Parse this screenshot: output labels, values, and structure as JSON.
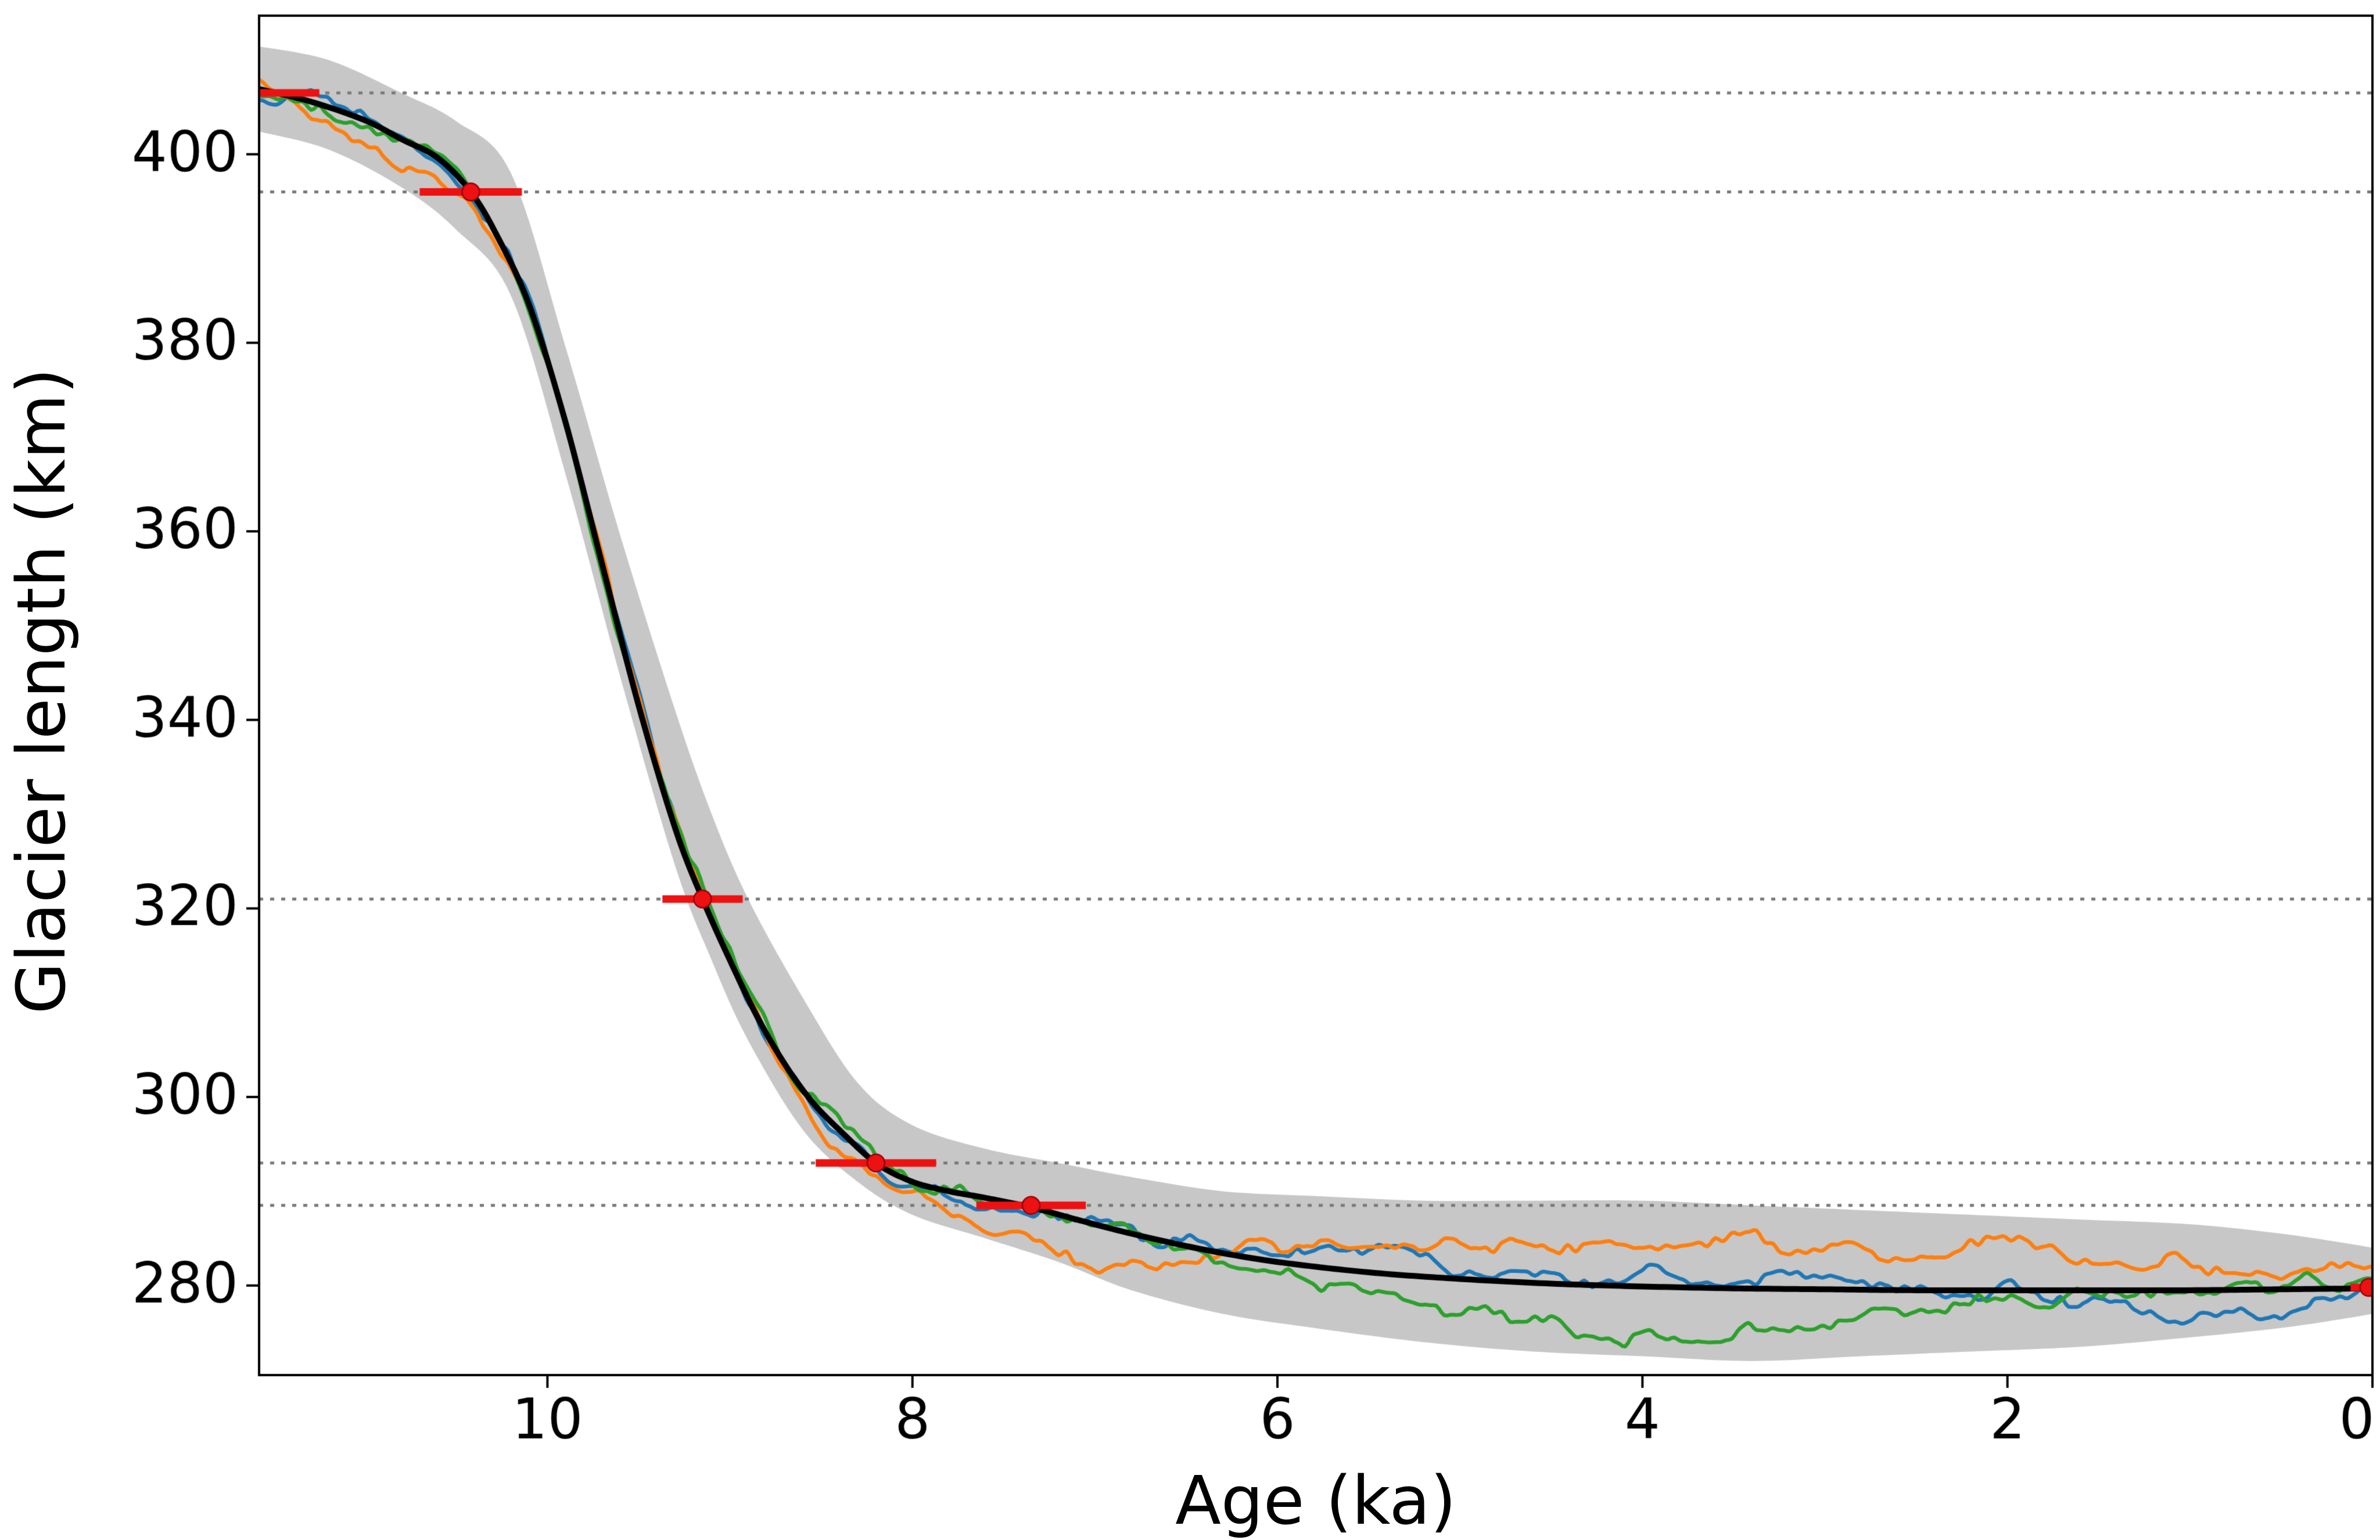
{
  "figure": {
    "background": "#ffffff"
  },
  "chart_data": {
    "type": "line",
    "title": "",
    "xlabel": "Age (ka)",
    "ylabel": "Glacier length (km)",
    "x_axis_reversed": true,
    "xlim": [
      11.58,
      0
    ],
    "ylim": [
      270.5,
      414.7
    ],
    "x_ticks": [
      10,
      8,
      6,
      4,
      2,
      0
    ],
    "y_ticks": [
      280,
      300,
      320,
      340,
      360,
      380,
      400
    ],
    "grid": false,
    "legend": "none",
    "dotted_reference_lines": {
      "color": "#7a7a7a",
      "y_values": [
        406.5,
        396.0,
        321.0,
        293.0,
        288.5
      ]
    },
    "envelope": {
      "name": "uncertainty-band",
      "color": "#c7c7c7",
      "points": [
        [
          11.6,
          402.5,
          411.5
        ],
        [
          11.2,
          400.5,
          410.0
        ],
        [
          10.8,
          396.5,
          406.5
        ],
        [
          10.5,
          392.0,
          403.5
        ],
        [
          10.2,
          385.0,
          398.0
        ],
        [
          9.9,
          366.0,
          379.5
        ],
        [
          9.6,
          344.5,
          359.5
        ],
        [
          9.3,
          324.5,
          341.0
        ],
        [
          9.1,
          314.5,
          330.0
        ],
        [
          8.9,
          306.0,
          321.0
        ],
        [
          8.6,
          296.5,
          310.5
        ],
        [
          8.3,
          291.0,
          301.5
        ],
        [
          8.0,
          287.5,
          297.0
        ],
        [
          7.6,
          285.0,
          294.5
        ],
        [
          7.2,
          282.5,
          293.0
        ],
        [
          6.8,
          279.5,
          291.5
        ],
        [
          6.3,
          277.0,
          290.0
        ],
        [
          5.8,
          275.5,
          289.5
        ],
        [
          5.2,
          274.0,
          289.0
        ],
        [
          4.6,
          273.0,
          289.0
        ],
        [
          4.0,
          272.5,
          289.0
        ],
        [
          3.4,
          272.0,
          288.5
        ],
        [
          2.8,
          272.5,
          288.0
        ],
        [
          2.2,
          273.0,
          287.5
        ],
        [
          1.6,
          273.5,
          287.0
        ],
        [
          1.0,
          274.5,
          286.5
        ],
        [
          0.5,
          275.5,
          285.5
        ],
        [
          0.15,
          276.5,
          284.5
        ],
        [
          0.0,
          277.0,
          284.0
        ]
      ]
    },
    "mean_curve": {
      "name": "ensemble-mean",
      "color": "#000000",
      "points": [
        [
          11.6,
          407.0
        ],
        [
          11.3,
          405.6
        ],
        [
          11.0,
          403.6
        ],
        [
          10.8,
          401.6
        ],
        [
          10.6,
          399.6
        ],
        [
          10.42,
          396.0
        ],
        [
          10.28,
          391.5
        ],
        [
          10.1,
          384.0
        ],
        [
          9.9,
          371.5
        ],
        [
          9.7,
          356.5
        ],
        [
          9.5,
          341.5
        ],
        [
          9.3,
          328.5
        ],
        [
          9.15,
          321.0
        ],
        [
          9.0,
          314.5
        ],
        [
          8.85,
          308.5
        ],
        [
          8.7,
          303.5
        ],
        [
          8.55,
          299.5
        ],
        [
          8.4,
          296.5
        ],
        [
          8.2,
          293.0
        ],
        [
          8.0,
          291.0
        ],
        [
          7.8,
          290.0
        ],
        [
          7.6,
          289.3
        ],
        [
          7.35,
          288.3
        ],
        [
          7.1,
          287.0
        ],
        [
          6.8,
          285.5
        ],
        [
          6.4,
          283.8
        ],
        [
          6.0,
          282.5
        ],
        [
          5.5,
          281.4
        ],
        [
          5.0,
          280.7
        ],
        [
          4.5,
          280.2
        ],
        [
          4.0,
          279.9
        ],
        [
          3.5,
          279.7
        ],
        [
          3.0,
          279.6
        ],
        [
          2.5,
          279.5
        ],
        [
          2.0,
          279.5
        ],
        [
          1.5,
          279.5
        ],
        [
          1.0,
          279.5
        ],
        [
          0.5,
          279.6
        ],
        [
          0.0,
          279.7
        ]
      ]
    },
    "ensemble_members": [
      {
        "name": "member-1",
        "color": "#1f77b4",
        "seed": 7,
        "bias_points": [
          [
            11.6,
            -0.5
          ],
          [
            11.0,
            0.5
          ],
          [
            10.5,
            -0.5
          ],
          [
            10.0,
            0.5
          ],
          [
            9.5,
            1.0
          ],
          [
            9.0,
            0.5
          ],
          [
            8.5,
            -0.5
          ],
          [
            8.0,
            -1.0
          ],
          [
            7.5,
            0.0
          ],
          [
            7.0,
            0.5
          ],
          [
            6.5,
            0.0
          ],
          [
            6.0,
            0.5
          ],
          [
            5.5,
            2.0
          ],
          [
            5.0,
            1.5
          ],
          [
            4.5,
            1.0
          ],
          [
            4.0,
            1.5
          ],
          [
            3.5,
            0.5
          ],
          [
            3.0,
            1.0
          ],
          [
            2.5,
            0.5
          ],
          [
            2.0,
            0.0
          ],
          [
            1.5,
            -1.0
          ],
          [
            1.0,
            -2.5
          ],
          [
            0.6,
            -3.5
          ],
          [
            0.3,
            -2.0
          ],
          [
            0.0,
            -0.5
          ]
        ]
      },
      {
        "name": "member-2",
        "color": "#ff7f0e",
        "seed": 13,
        "bias_points": [
          [
            11.6,
            1.0
          ],
          [
            11.2,
            -1.0
          ],
          [
            10.8,
            -2.0
          ],
          [
            10.5,
            -1.5
          ],
          [
            10.2,
            -1.0
          ],
          [
            9.8,
            0.0
          ],
          [
            9.4,
            1.5
          ],
          [
            9.0,
            1.0
          ],
          [
            8.7,
            -1.0
          ],
          [
            8.4,
            -2.0
          ],
          [
            8.0,
            -1.0
          ],
          [
            7.7,
            -2.5
          ],
          [
            7.3,
            -3.5
          ],
          [
            7.0,
            -4.0
          ],
          [
            6.7,
            -2.0
          ],
          [
            6.4,
            0.0
          ],
          [
            6.0,
            1.5
          ],
          [
            5.5,
            3.0
          ],
          [
            5.0,
            4.0
          ],
          [
            4.5,
            4.5
          ],
          [
            4.0,
            5.0
          ],
          [
            3.5,
            5.5
          ],
          [
            3.0,
            4.5
          ],
          [
            2.5,
            4.0
          ],
          [
            2.0,
            4.5
          ],
          [
            1.5,
            3.5
          ],
          [
            1.0,
            3.0
          ],
          [
            0.5,
            2.0
          ],
          [
            0.0,
            1.5
          ]
        ]
      },
      {
        "name": "member-3",
        "color": "#2ca02c",
        "seed": 29,
        "bias_points": [
          [
            11.6,
            0.5
          ],
          [
            11.0,
            -0.5
          ],
          [
            10.5,
            1.0
          ],
          [
            10.0,
            0.0
          ],
          [
            9.5,
            -0.5
          ],
          [
            9.0,
            1.0
          ],
          [
            8.5,
            0.5
          ],
          [
            8.0,
            0.0
          ],
          [
            7.5,
            0.5
          ],
          [
            7.0,
            1.0
          ],
          [
            6.5,
            0.0
          ],
          [
            6.0,
            -1.0
          ],
          [
            5.5,
            -2.5
          ],
          [
            5.0,
            -3.5
          ],
          [
            4.5,
            -4.5
          ],
          [
            4.0,
            -5.5
          ],
          [
            3.6,
            -5.0
          ],
          [
            3.2,
            -4.0
          ],
          [
            2.8,
            -2.5
          ],
          [
            2.4,
            -1.5
          ],
          [
            2.0,
            -1.0
          ],
          [
            1.5,
            -0.5
          ],
          [
            1.0,
            0.0
          ],
          [
            0.5,
            0.5
          ],
          [
            0.0,
            0.5
          ]
        ]
      }
    ],
    "ensemble_noise": {
      "coarse": {
        "spacing": 0.18,
        "amp": 1.1
      },
      "fine": {
        "spacing": 0.045,
        "amp": 0.45
      }
    },
    "observations": {
      "name": "dated-glacier-positions",
      "color": "#ee1111",
      "points": [
        {
          "age": 11.7,
          "length": 406.5,
          "age_err": 0.45
        },
        {
          "age": 10.42,
          "length": 396.0,
          "age_err": 0.28
        },
        {
          "age": 9.15,
          "length": 321.0,
          "age_err": 0.22
        },
        {
          "age": 8.2,
          "length": 293.0,
          "age_err": 0.33
        },
        {
          "age": 7.35,
          "length": 288.5,
          "age_err": 0.3
        },
        {
          "age": 0.02,
          "length": 279.8,
          "age_err": 0.1
        }
      ]
    }
  }
}
